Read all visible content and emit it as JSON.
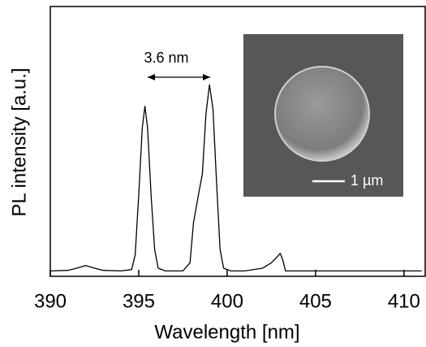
{
  "chart_data": {
    "type": "line",
    "x_label": "Wavelength [nm]",
    "y_label": "PL intensity [a.u.]",
    "annotations": [
      "3.6 nm",
      "1 µm"
    ],
    "xlim": [
      390,
      411.2
    ],
    "xticks": [
      390,
      395,
      400,
      405,
      410
    ],
    "ylim": [
      0,
      1
    ],
    "x": [
      390,
      391,
      391.5,
      392,
      392.5,
      393,
      394,
      394.6,
      394.8,
      395,
      395.2,
      395.35,
      395.5,
      395.7,
      395.9,
      396.1,
      396.5,
      397,
      397.5,
      397.9,
      398.1,
      398.4,
      398.6,
      398.8,
      399,
      399.2,
      399.4,
      399.6,
      399.8,
      400.2,
      401,
      402,
      402.5,
      402.8,
      403,
      403.15,
      403.3,
      404,
      406,
      408,
      411
    ],
    "series": [
      {
        "color": "#000000",
        "values": [
          0.02,
          0.022,
          0.03,
          0.04,
          0.03,
          0.022,
          0.02,
          0.025,
          0.08,
          0.3,
          0.55,
          0.63,
          0.55,
          0.3,
          0.1,
          0.03,
          0.02,
          0.02,
          0.02,
          0.05,
          0.2,
          0.31,
          0.38,
          0.6,
          0.71,
          0.62,
          0.35,
          0.1,
          0.03,
          0.02,
          0.02,
          0.03,
          0.05,
          0.07,
          0.085,
          0.06,
          0.02,
          0.02,
          0.02,
          0.02,
          0.02
        ]
      }
    ]
  }
}
